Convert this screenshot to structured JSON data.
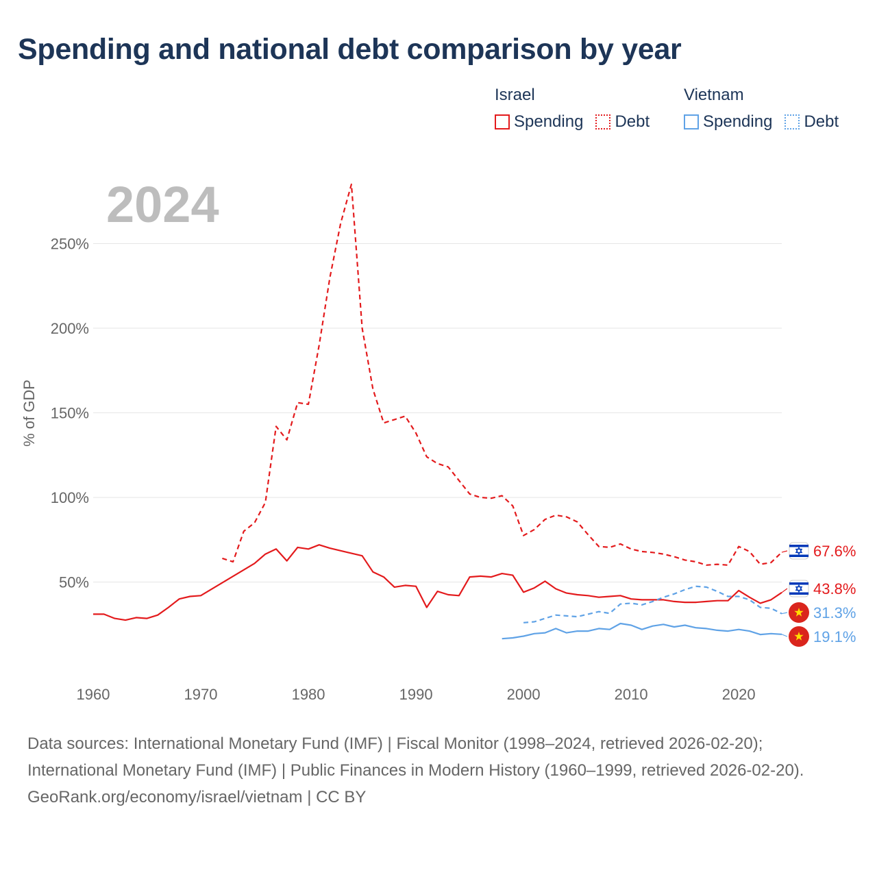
{
  "title": "Spending and national debt comparison by year",
  "year_label": "2024",
  "legend": {
    "groups": [
      {
        "name": "Israel",
        "color": "#e31a1c",
        "items": [
          {
            "label": "Spending",
            "style": "solid"
          },
          {
            "label": "Debt",
            "style": "dotted"
          }
        ]
      },
      {
        "name": "Vietnam",
        "color": "#5fa2e6",
        "items": [
          {
            "label": "Spending",
            "style": "solid"
          },
          {
            "label": "Debt",
            "style": "dotted"
          }
        ]
      }
    ]
  },
  "footer": {
    "sources": "Data sources: International Monetary Fund (IMF) | Fiscal Monitor (1998–2024, retrieved 2026-02-20); International Monetary Fund (IMF) | Public Finances in Modern History (1960–1999, retrieved 2026-02-20).",
    "credit": "GeoRank.org/economy/israel/vietnam | CC BY"
  },
  "chart_data": {
    "type": "line",
    "title": "Spending and national debt comparison by year",
    "xlabel": "",
    "ylabel": "% of GDP",
    "xlim": [
      1960,
      2024
    ],
    "ylim": [
      0,
      280
    ],
    "xticks": [
      1960,
      1970,
      1980,
      1990,
      2000,
      2010,
      2020
    ],
    "yticks": [
      50,
      100,
      150,
      200,
      250
    ],
    "ytick_labels": [
      "50%",
      "100%",
      "150%",
      "200%",
      "250%"
    ],
    "grid": true,
    "series": [
      {
        "name": "Israel Spending",
        "country": "Israel",
        "metric": "Spending",
        "color": "#e31a1c",
        "style": "solid",
        "end_label": "43.8%",
        "flag": "israel-flag",
        "points": [
          [
            1960,
            31
          ],
          [
            1961,
            31
          ],
          [
            1962,
            28.5
          ],
          [
            1963,
            27.5
          ],
          [
            1964,
            29
          ],
          [
            1965,
            28.5
          ],
          [
            1966,
            30.5
          ],
          [
            1967,
            35
          ],
          [
            1968,
            40
          ],
          [
            1969,
            41.5
          ],
          [
            1970,
            42
          ],
          [
            1975,
            61
          ],
          [
            1976,
            66.5
          ],
          [
            1977,
            69.5
          ],
          [
            1978,
            62.5
          ],
          [
            1979,
            70.5
          ],
          [
            1980,
            69.5
          ],
          [
            1981,
            72
          ],
          [
            1982,
            70
          ],
          [
            1985,
            65.5
          ],
          [
            1986,
            56
          ],
          [
            1987,
            53
          ],
          [
            1988,
            47
          ],
          [
            1989,
            48
          ],
          [
            1990,
            47.5
          ],
          [
            1991,
            35
          ],
          [
            1992,
            44.5
          ],
          [
            1993,
            42.5
          ],
          [
            1994,
            42
          ],
          [
            1995,
            53
          ],
          [
            1996,
            53.5
          ],
          [
            1997,
            53
          ],
          [
            1998,
            55
          ],
          [
            1999,
            54
          ],
          [
            2000,
            44
          ],
          [
            2001,
            46.5
          ],
          [
            2002,
            50.5
          ],
          [
            2003,
            46
          ],
          [
            2004,
            43.5
          ],
          [
            2005,
            42.5
          ],
          [
            2006,
            42
          ],
          [
            2007,
            41
          ],
          [
            2008,
            41.5
          ],
          [
            2009,
            42
          ],
          [
            2010,
            40
          ],
          [
            2011,
            39.5
          ],
          [
            2012,
            39.5
          ],
          [
            2013,
            39.5
          ],
          [
            2014,
            38.5
          ],
          [
            2015,
            38
          ],
          [
            2016,
            38
          ],
          [
            2017,
            38.5
          ],
          [
            2018,
            39
          ],
          [
            2019,
            39
          ],
          [
            2020,
            45
          ],
          [
            2021,
            41
          ],
          [
            2022,
            37.5
          ],
          [
            2023,
            39.5
          ],
          [
            2024,
            43.8
          ]
        ]
      },
      {
        "name": "Israel Debt",
        "country": "Israel",
        "metric": "Debt",
        "color": "#e31a1c",
        "style": "dashed",
        "end_label": "67.6%",
        "flag": "israel-flag",
        "points": [
          [
            1972,
            64
          ],
          [
            1973,
            62
          ],
          [
            1974,
            80
          ],
          [
            1975,
            85
          ],
          [
            1976,
            97
          ],
          [
            1977,
            142
          ],
          [
            1978,
            134
          ],
          [
            1979,
            156
          ],
          [
            1980,
            155
          ],
          [
            1981,
            190
          ],
          [
            1982,
            230
          ],
          [
            1983,
            262
          ],
          [
            1984,
            285
          ],
          [
            1985,
            200
          ],
          [
            1986,
            164
          ],
          [
            1987,
            144
          ],
          [
            1988,
            146
          ],
          [
            1989,
            148
          ],
          [
            1990,
            138
          ],
          [
            1991,
            124
          ],
          [
            1992,
            120
          ],
          [
            1993,
            118
          ],
          [
            1994,
            110
          ],
          [
            1995,
            102
          ],
          [
            1996,
            100
          ],
          [
            1997,
            99.5
          ],
          [
            1998,
            101
          ],
          [
            1999,
            95
          ],
          [
            2000,
            77.5
          ],
          [
            2001,
            81
          ],
          [
            2002,
            87
          ],
          [
            2003,
            89.5
          ],
          [
            2004,
            88.5
          ],
          [
            2005,
            85.5
          ],
          [
            2006,
            78
          ],
          [
            2007,
            71
          ],
          [
            2008,
            70.5
          ],
          [
            2009,
            72.5
          ],
          [
            2010,
            69.5
          ],
          [
            2011,
            68
          ],
          [
            2012,
            67.5
          ],
          [
            2013,
            66.5
          ],
          [
            2014,
            65
          ],
          [
            2015,
            63
          ],
          [
            2016,
            62
          ],
          [
            2017,
            60
          ],
          [
            2018,
            60.5
          ],
          [
            2019,
            60
          ],
          [
            2020,
            71
          ],
          [
            2021,
            68
          ],
          [
            2022,
            60.5
          ],
          [
            2023,
            61.5
          ],
          [
            2024,
            67.6
          ]
        ]
      },
      {
        "name": "Vietnam Spending",
        "country": "Vietnam",
        "metric": "Spending",
        "color": "#5fa2e6",
        "style": "solid",
        "end_label": "19.1%",
        "flag": "vietnam-flag",
        "points": [
          [
            1998,
            16.5
          ],
          [
            1999,
            17
          ],
          [
            2000,
            18
          ],
          [
            2001,
            19.5
          ],
          [
            2002,
            20
          ],
          [
            2003,
            22.5
          ],
          [
            2004,
            20
          ],
          [
            2005,
            21
          ],
          [
            2006,
            21
          ],
          [
            2007,
            22.5
          ],
          [
            2008,
            22
          ],
          [
            2009,
            25.5
          ],
          [
            2010,
            24.5
          ],
          [
            2011,
            22
          ],
          [
            2012,
            24
          ],
          [
            2013,
            25
          ],
          [
            2014,
            23.5
          ],
          [
            2015,
            24.5
          ],
          [
            2016,
            23
          ],
          [
            2017,
            22.5
          ],
          [
            2018,
            21.5
          ],
          [
            2019,
            21
          ],
          [
            2020,
            22
          ],
          [
            2021,
            21
          ],
          [
            2022,
            19
          ],
          [
            2023,
            19.5
          ],
          [
            2024,
            19.1
          ]
        ]
      },
      {
        "name": "Vietnam Debt",
        "country": "Vietnam",
        "metric": "Debt",
        "color": "#5fa2e6",
        "style": "dashed",
        "end_label": "31.3%",
        "flag": "vietnam-flag",
        "points": [
          [
            2000,
            26
          ],
          [
            2001,
            26.5
          ],
          [
            2002,
            28.5
          ],
          [
            2003,
            30.5
          ],
          [
            2004,
            30
          ],
          [
            2005,
            29.5
          ],
          [
            2006,
            31
          ],
          [
            2007,
            32.5
          ],
          [
            2008,
            31.5
          ],
          [
            2009,
            37
          ],
          [
            2010,
            37.5
          ],
          [
            2011,
            36.5
          ],
          [
            2012,
            38.5
          ],
          [
            2013,
            41
          ],
          [
            2014,
            43
          ],
          [
            2015,
            45.5
          ],
          [
            2016,
            47.5
          ],
          [
            2017,
            47
          ],
          [
            2018,
            44.5
          ],
          [
            2019,
            41.5
          ],
          [
            2020,
            41.5
          ],
          [
            2021,
            39.5
          ],
          [
            2022,
            35
          ],
          [
            2023,
            34.5
          ],
          [
            2024,
            31.3
          ]
        ]
      }
    ]
  }
}
